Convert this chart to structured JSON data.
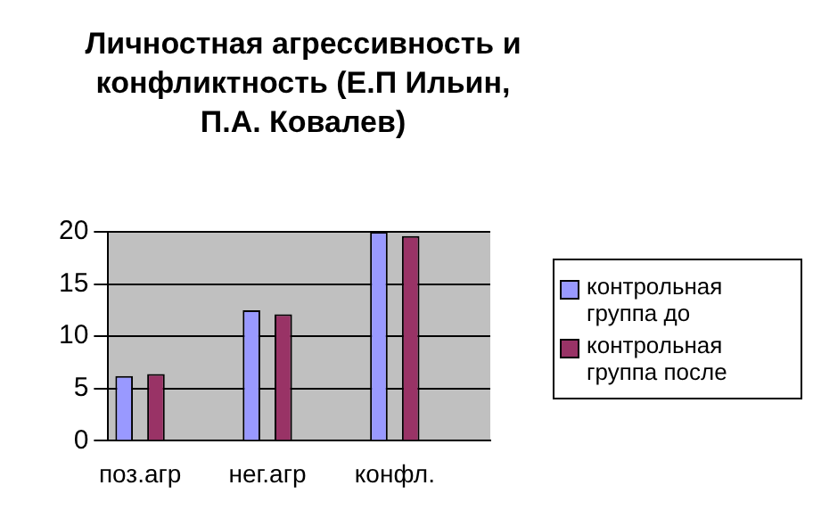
{
  "chart_data": {
    "type": "bar",
    "title": "Личностная агрессивность и конфликтность (Е.П Ильин, П.А. Ковалев)",
    "categories": [
      "поз.агр",
      null,
      "нег.агр",
      null,
      "конфл.",
      null
    ],
    "series": [
      {
        "name": "контрольная группа до",
        "color": "#9999ff",
        "values": [
          6.2,
          null,
          12.5,
          null,
          20,
          null
        ]
      },
      {
        "name": "контрольная группа после",
        "color": "#993366",
        "values": [
          6.4,
          null,
          12.1,
          null,
          19.6,
          null
        ]
      }
    ],
    "ylim": [
      0,
      20
    ],
    "yticks": [
      0,
      5,
      10,
      15,
      20
    ],
    "grid": "y",
    "legend": "right"
  }
}
